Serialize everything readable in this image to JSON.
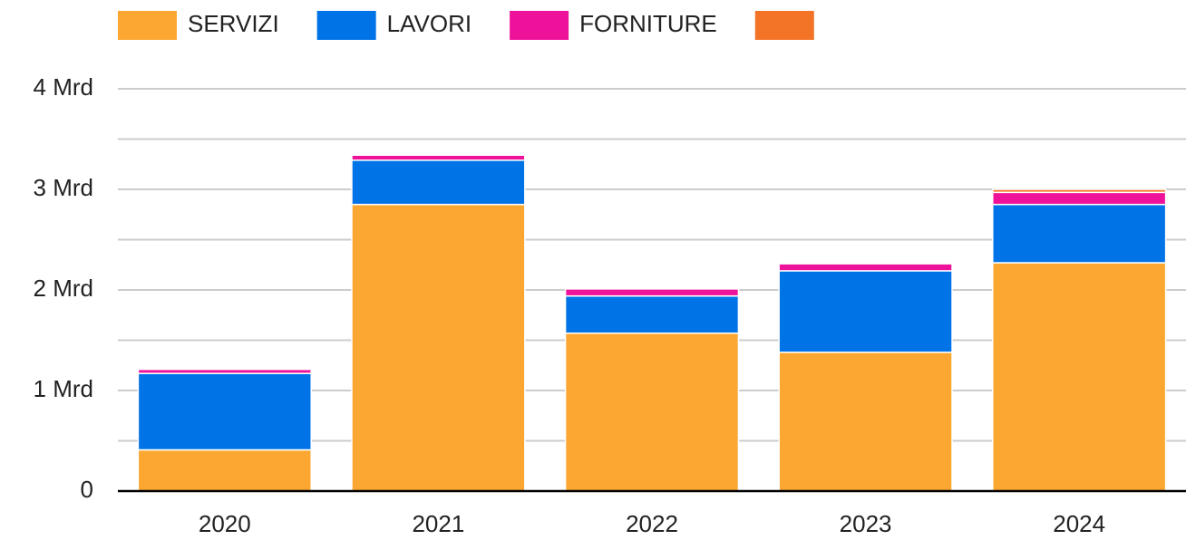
{
  "chart_data": {
    "type": "stacked_bar",
    "categories": [
      "2020",
      "2021",
      "2022",
      "2023",
      "2024"
    ],
    "series": [
      {
        "name": "SERVIZI",
        "color": "#fba731",
        "values": [
          0.41,
          2.85,
          1.57,
          1.38,
          2.27
        ]
      },
      {
        "name": "LAVORI",
        "color": "#0073e6",
        "values": [
          0.76,
          0.44,
          0.37,
          0.81,
          0.58
        ]
      },
      {
        "name": "FORNITURE",
        "color": "#ee1199",
        "values": [
          0.04,
          0.05,
          0.07,
          0.07,
          0.12
        ]
      },
      {
        "name": null,
        "color": "#f47427",
        "values": [
          0,
          0.01,
          0,
          0,
          0.03
        ]
      }
    ],
    "ylim": [
      0,
      4
    ],
    "yticks": [
      0,
      {
        "value": 1,
        "label": "1 Mrd"
      },
      {
        "value": 2,
        "label": "2 Mrd"
      },
      {
        "value": 3,
        "label": "3 Mrd"
      },
      {
        "value": 4,
        "label": "4 Mrd"
      }
    ],
    "minor_yticks": [
      0.5,
      1.5,
      2.5,
      3.5
    ],
    "grid": true,
    "legend": "top"
  }
}
